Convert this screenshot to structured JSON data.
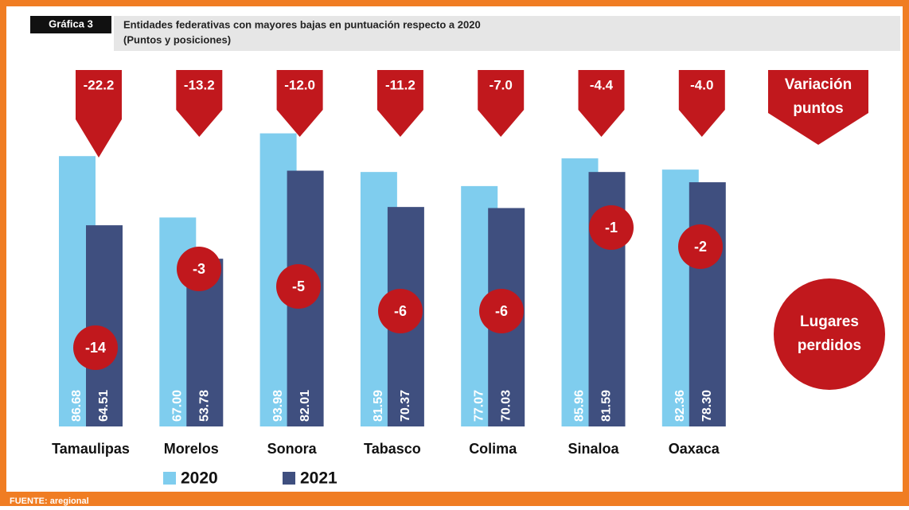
{
  "chart_data": {
    "type": "bar",
    "figure_label": "Gráfica 3",
    "title": "Entidades federativas con mayores bajas en puntuación respecto a 2020",
    "subtitle": "(Puntos y posiciones)",
    "categories": [
      "Tamaulipas",
      "Morelos",
      "Sonora",
      "Tabasco",
      "Colima",
      "Sinaloa",
      "Oaxaca"
    ],
    "series": [
      {
        "name": "2020",
        "color": "#7fcdee",
        "values": [
          86.68,
          67.0,
          93.98,
          81.59,
          77.07,
          85.96,
          82.36
        ],
        "value_labels": [
          "86.68",
          "67.00",
          "93.98",
          "81.59",
          "77.07",
          "85.96",
          "82.36"
        ]
      },
      {
        "name": "2021",
        "color": "#3f4f7f",
        "values": [
          64.51,
          53.78,
          82.01,
          70.37,
          70.03,
          81.59,
          78.3
        ],
        "value_labels": [
          "64.51",
          "53.78",
          "82.01",
          "70.37",
          "70.03",
          "81.59",
          "78.30"
        ]
      }
    ],
    "ylim": [
      0,
      100
    ],
    "variation": {
      "legend": [
        "Variación",
        "puntos"
      ],
      "color": "#c1181d",
      "values": [
        -22.2,
        -13.2,
        -12.0,
        -11.2,
        -7.0,
        -4.4,
        -4.0
      ],
      "value_labels": [
        "-22.2",
        "-13.2",
        "-12.0",
        "-11.2",
        "-7.0",
        "-4.4",
        "-4.0"
      ]
    },
    "places": {
      "legend": [
        "Lugares",
        "perdidos"
      ],
      "color": "#c1181d",
      "values": [
        -14,
        -3,
        -5,
        -6,
        -6,
        -1,
        -2
      ]
    },
    "source": "FUENTE: aregional"
  }
}
